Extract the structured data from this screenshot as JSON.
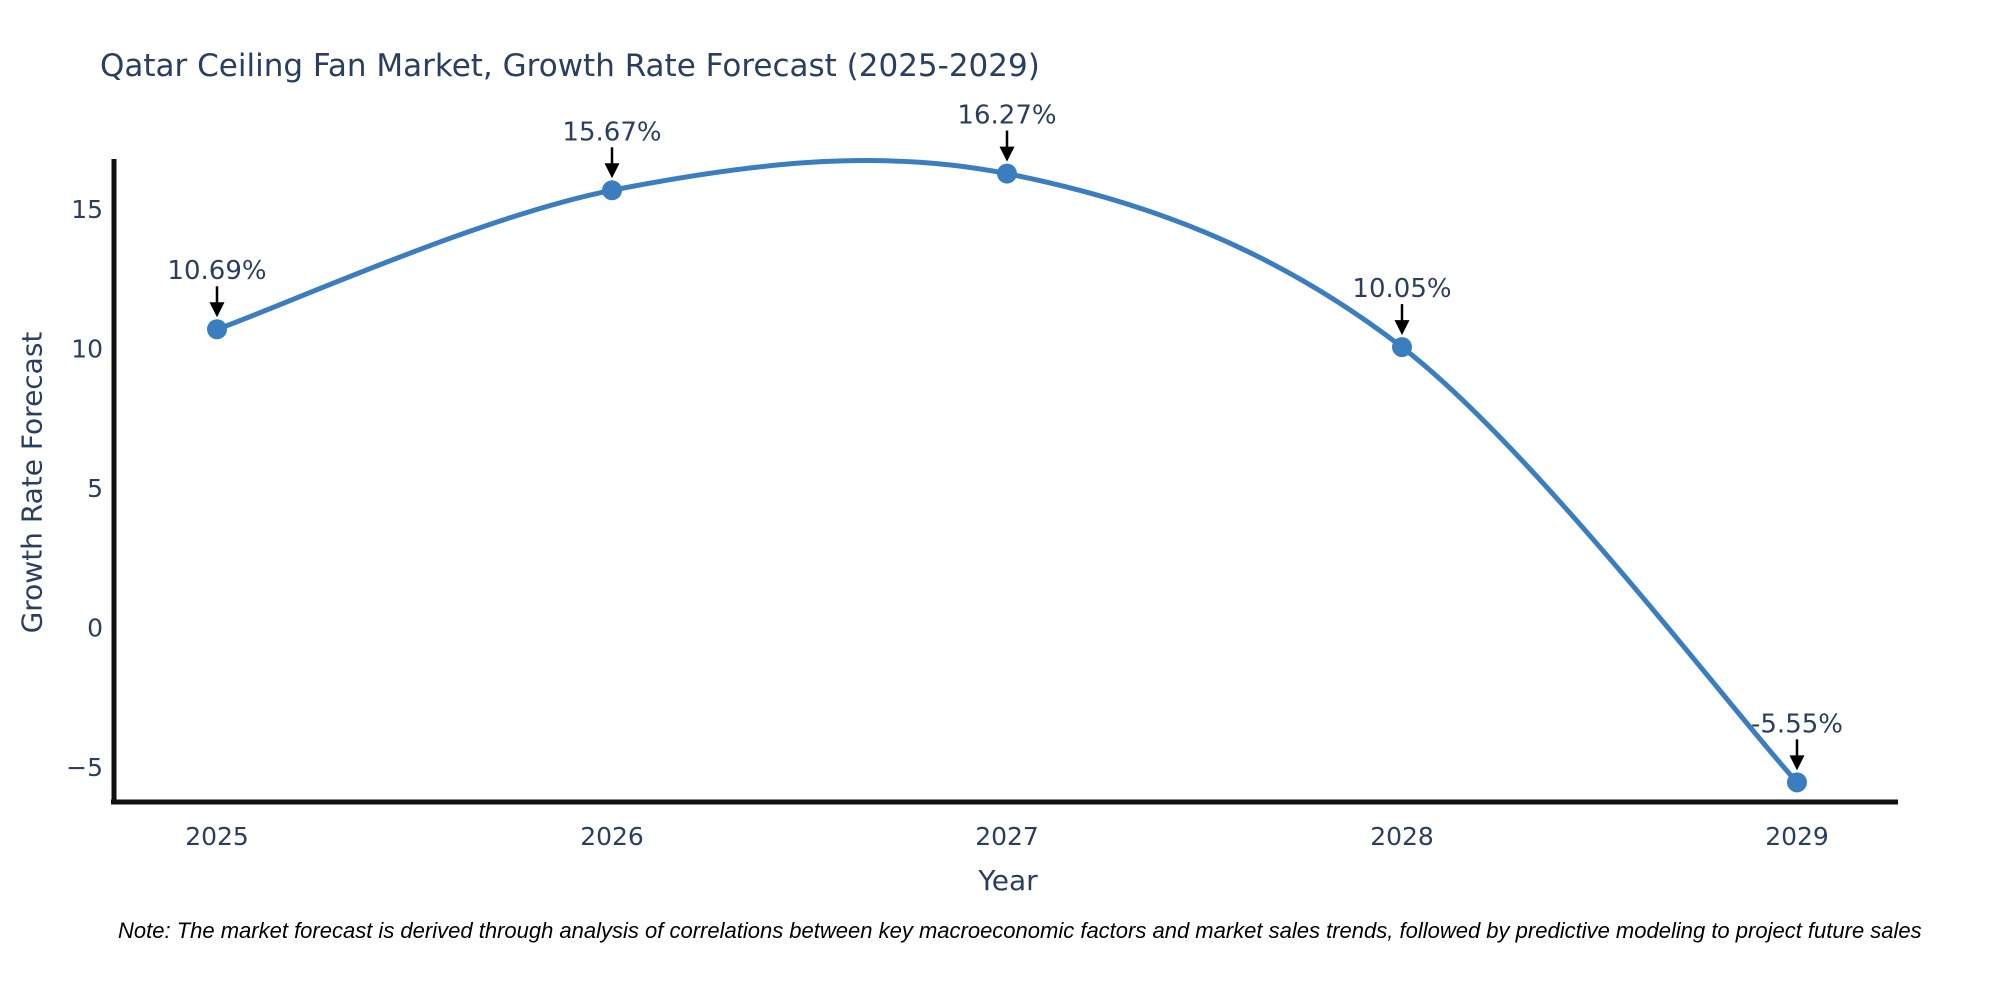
{
  "chart_data": {
    "type": "line",
    "title": "Qatar Ceiling Fan Market, Growth Rate Forecast (2025-2029)",
    "xlabel": "Year",
    "ylabel": "Growth Rate Forecast",
    "categories": [
      "2025",
      "2026",
      "2027",
      "2028",
      "2029"
    ],
    "series": [
      {
        "name": "Growth Rate Forecast",
        "values": [
          10.69,
          15.67,
          16.27,
          10.05,
          -5.55
        ]
      }
    ],
    "point_labels": [
      "10.69%",
      "15.67%",
      "16.27%",
      "10.05%",
      "-5.55%"
    ],
    "yticks": {
      "values": [
        15,
        10,
        5,
        0,
        -5
      ],
      "labels": [
        "15",
        "10",
        "5",
        "0",
        "−5"
      ]
    },
    "ylim": [
      -6.3,
      16.9
    ],
    "line_shape": "spline",
    "grid": false,
    "legend_position": "none",
    "colors": {
      "line": "#3a7ebf",
      "marker": "#3a7ebf",
      "axis": "#111111",
      "tick_text": "#2a3f5f",
      "annotation_text": "#2a3f5f",
      "arrow": "#000000",
      "title_text": "#2a3f5f",
      "note_text": "#000000",
      "background": "#ffffff"
    }
  },
  "note": "Note: The market forecast is derived through analysis of correlations between key macroeconomic factors and market sales trends, followed by predictive modeling to project future sales"
}
